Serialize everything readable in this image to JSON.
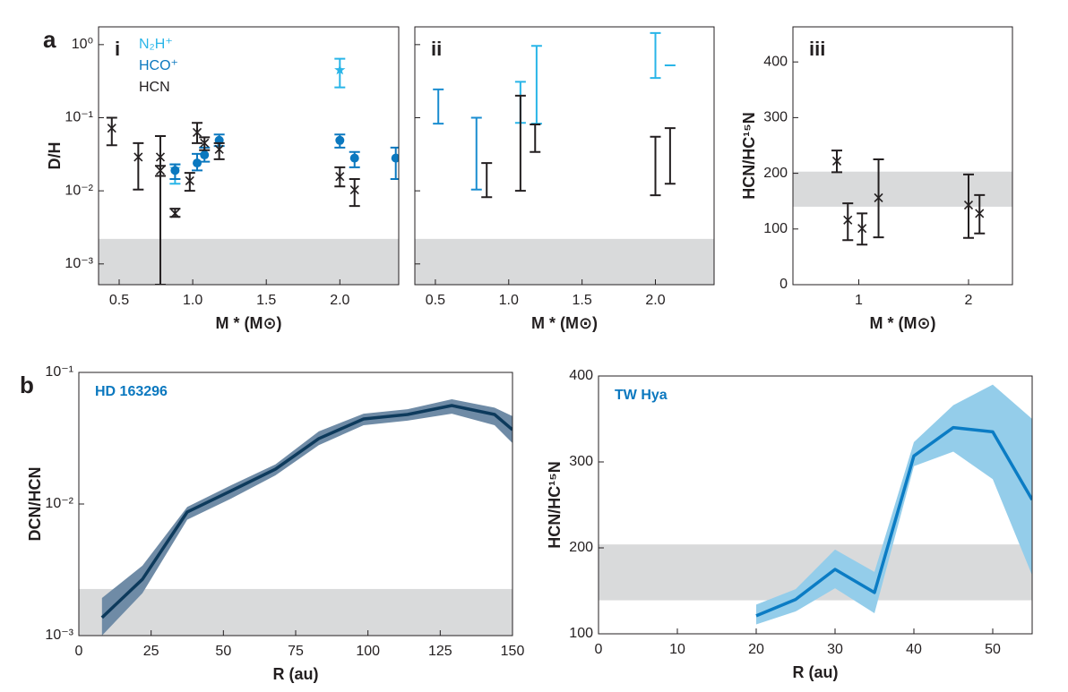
{
  "chart_data": [
    {
      "type": "errorbar",
      "panel": "a",
      "subpanel": "i",
      "ylabel": "D/H",
      "xlabel": "M * (M⊙)",
      "xlim": [
        0.36,
        2.4
      ],
      "ylim": [
        0.00052,
        1.75
      ],
      "log_y": true,
      "xticks": [
        0.5,
        {
          "value": 1,
          "label": "1.0"
        },
        1.5,
        {
          "value": 2,
          "label": "2.0"
        }
      ],
      "yticks": [
        {
          "value": 1,
          "label": "10⁰"
        },
        {
          "value": 0.1,
          "label": "10⁻¹"
        },
        {
          "value": 0.01,
          "label": "10⁻²"
        },
        {
          "value": 0.001,
          "label": "10⁻³"
        }
      ],
      "shaded_range": [
        0.00052,
        0.0022
      ],
      "shade_color": "#d9dadb",
      "legend": "upper left",
      "series": [
        {
          "name": "N₂H⁺",
          "color": "#29b5e8",
          "marker": "star",
          "x": [
            0.88,
            2.0
          ],
          "values": [
            0.02,
            0.45
          ],
          "lower": [
            0.0125,
            0.26
          ],
          "upper": [
            0.023,
            0.64
          ]
        },
        {
          "name": "HCO⁺",
          "color": "#0b78bf",
          "marker": "circle",
          "x": [
            0.88,
            1.03,
            1.08,
            1.18,
            2.0,
            2.1,
            2.38
          ],
          "values": [
            0.019,
            0.024,
            0.031,
            0.049,
            0.049,
            0.028,
            0.028
          ],
          "lower": [
            0.0145,
            0.019,
            0.025,
            0.041,
            0.039,
            0.021,
            0.0145
          ],
          "upper": [
            0.023,
            0.032,
            0.039,
            0.059,
            0.059,
            0.034,
            0.039
          ]
        },
        {
          "name": "HCN",
          "color": "#231f20",
          "marker": "x",
          "x": [
            0.45,
            0.63,
            0.78,
            0.78,
            0.88,
            0.98,
            1.03,
            1.08,
            1.18,
            2.0,
            2.1
          ],
          "values": [
            0.072,
            0.029,
            0.029,
            0.019,
            0.0049,
            0.0137,
            0.063,
            0.045,
            0.037,
            0.0157,
            0.0103
          ],
          "lower": [
            0.042,
            0.0104,
            0.00052,
            0.016,
            0.0044,
            0.01,
            0.045,
            0.036,
            0.027,
            0.0115,
            0.0062
          ],
          "upper": [
            0.1,
            0.045,
            0.056,
            0.022,
            0.0057,
            0.0176,
            0.085,
            0.054,
            0.045,
            0.021,
            0.0145
          ]
        }
      ]
    },
    {
      "type": "errorbar",
      "subpanel": "ii",
      "xlabel": "M * (M⊙)",
      "xlim": [
        0.36,
        2.4
      ],
      "ylim": [
        0.00052,
        1.75
      ],
      "log_y": true,
      "xticks": [
        0.5,
        {
          "value": 1,
          "label": "1.0"
        },
        1.5,
        {
          "value": 2,
          "label": "2.0"
        }
      ],
      "yticks": [
        1,
        0.1,
        0.01,
        0.001
      ],
      "ytick_labels": false,
      "shaded_range": [
        0.00052,
        0.0022
      ],
      "shade_color": "#d9dadb",
      "series": [
        {
          "color": "#29b5e8",
          "x": [
            1.08,
            1.19,
            2.0,
            2.1
          ],
          "lower": [
            0.085,
            0.083,
            0.35,
            0.52
          ],
          "upper": [
            0.31,
            0.96,
            1.44,
            0.52
          ]
        },
        {
          "color": "#1a8dd0",
          "x": [
            0.52,
            0.78
          ],
          "lower": [
            0.083,
            0.0104
          ],
          "upper": [
            0.244,
            0.1
          ]
        },
        {
          "color": "#231f20",
          "x": [
            0.85,
            1.08,
            1.18,
            2.0,
            2.1
          ],
          "lower": [
            0.0082,
            0.01,
            0.034,
            0.0087,
            0.0125
          ],
          "upper": [
            0.024,
            0.2,
            0.081,
            0.055,
            0.072
          ]
        }
      ]
    },
    {
      "type": "errorbar",
      "subpanel": "iii",
      "ylabel": "HCN/HC¹⁵N",
      "xlabel": "M * (M⊙)",
      "xlim": [
        0.4,
        2.4
      ],
      "ylim": [
        0,
        463
      ],
      "xticks": [
        1,
        2
      ],
      "yticks": [
        0,
        100,
        200,
        300,
        400
      ],
      "shaded_range": [
        140,
        203
      ],
      "shade_color": "#d9dadb",
      "series": [
        {
          "color": "#231f20",
          "marker": "x",
          "x": [
            0.8,
            0.9,
            1.03,
            1.18,
            2.0,
            2.1
          ],
          "values": [
            222,
            116,
            101,
            156,
            143,
            128
          ],
          "lower": [
            202,
            80,
            72,
            85,
            84,
            92
          ],
          "upper": [
            241,
            146,
            128,
            225,
            198,
            161
          ]
        }
      ]
    },
    {
      "type": "line",
      "panel": "b",
      "annotation": "HD 163296",
      "annotation_color": "#0b78bf",
      "ylabel": "DCN/HCN",
      "xlabel": "R (au)",
      "xlim": [
        0,
        150
      ],
      "ylim": [
        0.001,
        0.1
      ],
      "log_y": true,
      "xticks": [
        0,
        25,
        50,
        75,
        100,
        125,
        150
      ],
      "yticks": [
        {
          "value": 0.1,
          "label": "10⁻¹"
        },
        {
          "value": 0.01,
          "label": "10⁻²"
        },
        {
          "value": 0.001,
          "label": "10⁻³"
        }
      ],
      "shaded_range": [
        0.001,
        0.00226
      ],
      "shade_color": "#d9dadb",
      "series": [
        {
          "color": "#0d3a5c",
          "band_color": "#6f8ba6",
          "x": [
            8,
            22,
            37.5,
            52.7,
            68,
            83,
            98.5,
            113.7,
            129,
            143.8,
            150
          ],
          "values": [
            0.00137,
            0.00268,
            0.0087,
            0.0126,
            0.0184,
            0.0314,
            0.0443,
            0.0479,
            0.056,
            0.0479,
            0.0367
          ],
          "lower": [
            0.001,
            0.0021,
            0.0076,
            0.011,
            0.0165,
            0.028,
            0.0397,
            0.043,
            0.0486,
            0.0397,
            0.029
          ],
          "upper": [
            0.00193,
            0.0034,
            0.0095,
            0.0139,
            0.02,
            0.0356,
            0.0486,
            0.0525,
            0.0625,
            0.054,
            0.0465
          ]
        }
      ]
    },
    {
      "type": "line",
      "annotation": "TW Hya",
      "annotation_color": "#0b78bf",
      "ylabel": "HCN/HC¹⁵N",
      "xlabel": "R (au)",
      "xlim": [
        0,
        55
      ],
      "ylim": [
        100,
        400
      ],
      "xticks": [
        0,
        10,
        20,
        30,
        40,
        50
      ],
      "yticks": [
        100,
        200,
        300,
        400
      ],
      "shaded_range": [
        139,
        204
      ],
      "shade_color": "#d9dadb",
      "series": [
        {
          "color": "#0b7cc4",
          "band_color": "#94cdea",
          "x": [
            20,
            25,
            30,
            35,
            40,
            45,
            50,
            55
          ],
          "values": [
            121,
            140,
            175,
            148,
            307,
            340,
            335,
            256
          ],
          "lower": [
            111,
            126,
            153,
            124,
            295,
            312,
            280,
            168
          ],
          "upper": [
            134,
            152,
            198,
            172,
            323,
            366,
            390,
            350
          ]
        }
      ]
    }
  ]
}
